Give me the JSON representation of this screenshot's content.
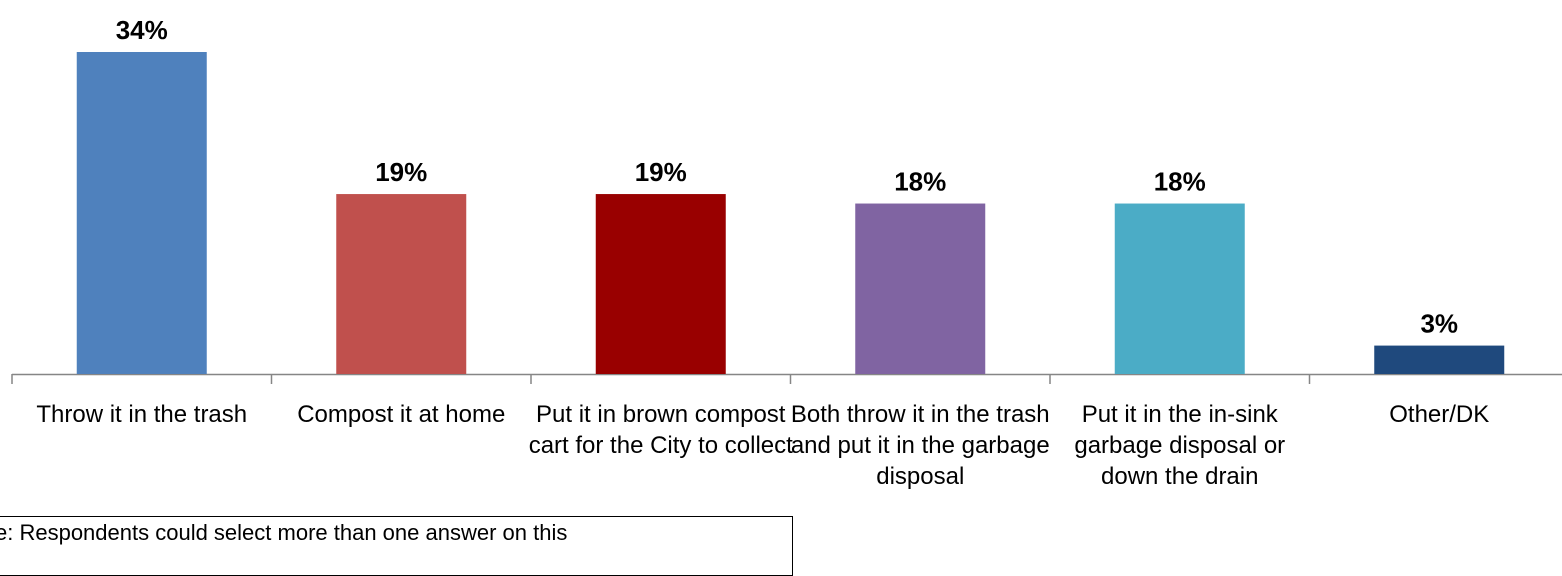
{
  "chart_data": {
    "type": "bar",
    "categories": [
      "Throw it in the trash",
      "Compost it at home",
      "Put it in brown compost cart for the City to collect",
      "Both throw it in the trash and put it in the garbage disposal",
      "Put it in the in-sink garbage disposal or down the drain",
      "Other/DK"
    ],
    "values": [
      34,
      19,
      19,
      18,
      18,
      3
    ],
    "value_labels": [
      "34%",
      "19%",
      "19%",
      "18%",
      "18%",
      "3%"
    ],
    "colors": [
      "#4F81BD",
      "#C0504D",
      "#990000",
      "#8064A2",
      "#4BACC6",
      "#1F497D"
    ],
    "ylim": [
      0,
      34
    ],
    "grid": false,
    "legend": "none"
  },
  "note": "e:  Respondents could select more than one answer on this"
}
